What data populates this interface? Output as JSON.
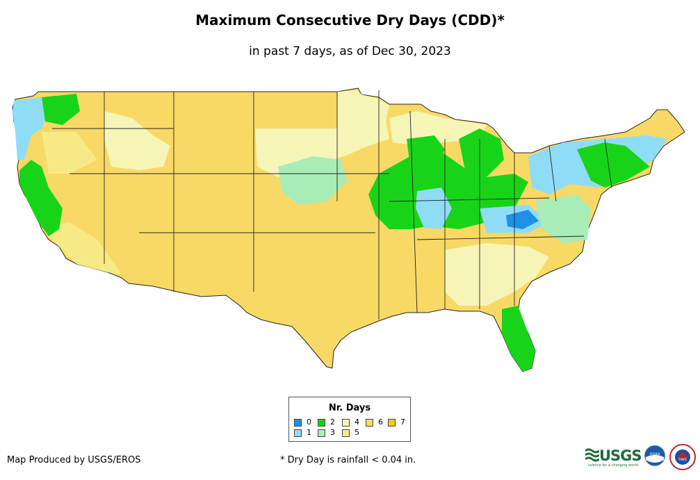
{
  "title": "Maximum Consecutive Dry Days (CDD)*",
  "subtitle": "in past 7 days, as of Dec 30, 2023",
  "legend": {
    "title": "Nr. Days",
    "items": [
      {
        "label": "0",
        "color": "#1e90e6"
      },
      {
        "label": "1",
        "color": "#8fdcf7"
      },
      {
        "label": "2",
        "color": "#18d418"
      },
      {
        "label": "3",
        "color": "#a8ecb8"
      },
      {
        "label": "4",
        "color": "#f6f5b8"
      },
      {
        "label": "5",
        "color": "#f7ea86"
      },
      {
        "label": "6",
        "color": "#f8d965"
      },
      {
        "label": "7",
        "color": "#f4c81e"
      }
    ]
  },
  "credit": "Map Produced by USGS/EROS",
  "footnote": "* Dry Day is rainfall < 0.04 in.",
  "logos": {
    "usgs": "USGS",
    "usgs_tagline": "science for a changing world",
    "noaa": "noaa",
    "nws": "nws"
  },
  "colors": {
    "days_0": "#1e90e6",
    "days_1": "#8fdcf7",
    "days_2": "#18d418",
    "days_3": "#a8ecb8",
    "days_4": "#f6f5b8",
    "days_5": "#f7ea86",
    "days_6": "#f8d965",
    "days_7": "#f4c81e"
  }
}
